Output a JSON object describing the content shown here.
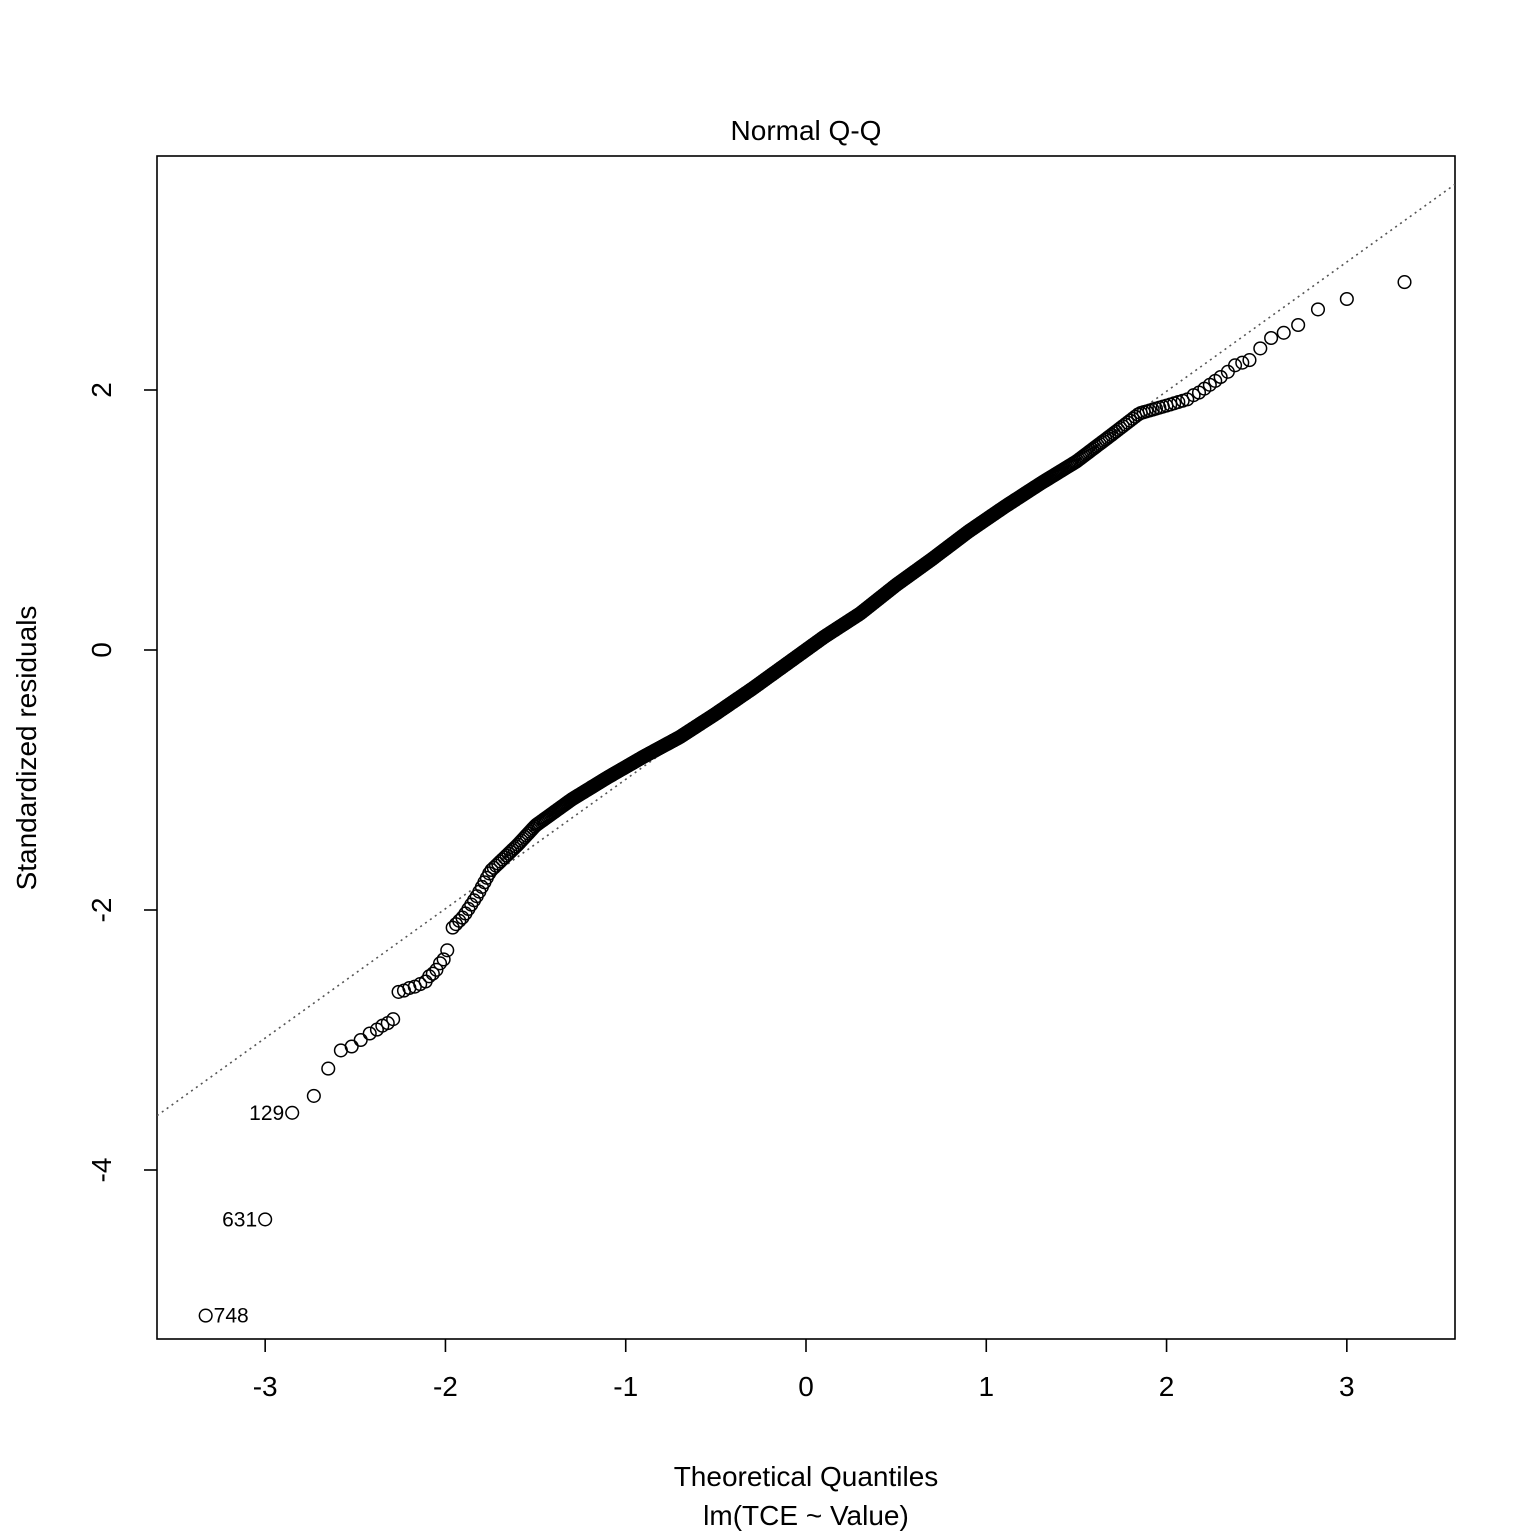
{
  "chart_data": {
    "type": "scatter",
    "title": "Normal Q-Q",
    "xlabel": "Theoretical Quantiles",
    "xlabel_sub": "lm(TCE ~ Value)",
    "ylabel": "Standardized residuals",
    "xlim": [
      -3.6,
      3.6
    ],
    "ylim": [
      -5.3,
      3.8
    ],
    "x_ticks": [
      -3,
      -2,
      -1,
      0,
      1,
      2,
      3
    ],
    "y_ticks": [
      -4,
      -2,
      0,
      2
    ],
    "grid": false,
    "reference_line": {
      "intercept": 0.0,
      "slope": 0.995,
      "style": "dotted"
    },
    "n_points": 900,
    "labeled_points": [
      {
        "label": "748",
        "x": -3.33,
        "y": -5.12
      },
      {
        "label": "631",
        "x": -3.0,
        "y": -4.38
      },
      {
        "label": "129",
        "x": -2.85,
        "y": -3.56
      }
    ],
    "tail_points": [
      {
        "x": -2.73,
        "y": -3.43
      },
      {
        "x": -2.65,
        "y": -3.22
      },
      {
        "x": -2.58,
        "y": -3.08
      },
      {
        "x": -2.52,
        "y": -3.05
      },
      {
        "x": -2.47,
        "y": -3.0
      },
      {
        "x": -2.42,
        "y": -2.95
      },
      {
        "x": -2.38,
        "y": -2.92
      },
      {
        "x": -2.35,
        "y": -2.89
      },
      {
        "x": -2.32,
        "y": -2.87
      },
      {
        "x": -2.29,
        "y": -2.84
      },
      {
        "x": -2.26,
        "y": -2.63
      },
      {
        "x": -2.23,
        "y": -2.62
      },
      {
        "x": -2.2,
        "y": -2.6
      },
      {
        "x": -2.17,
        "y": -2.59
      },
      {
        "x": -2.14,
        "y": -2.57
      },
      {
        "x": -2.11,
        "y": -2.55
      },
      {
        "x": -2.09,
        "y": -2.51
      },
      {
        "x": -2.07,
        "y": -2.49
      },
      {
        "x": -2.05,
        "y": -2.46
      },
      {
        "x": -2.03,
        "y": -2.41
      },
      {
        "x": -2.01,
        "y": -2.38
      },
      {
        "x": -1.99,
        "y": -2.31
      },
      {
        "x": 2.15,
        "y": 1.96
      },
      {
        "x": 2.18,
        "y": 1.98
      },
      {
        "x": 2.21,
        "y": 2.01
      },
      {
        "x": 2.24,
        "y": 2.04
      },
      {
        "x": 2.27,
        "y": 2.07
      },
      {
        "x": 2.3,
        "y": 2.1
      },
      {
        "x": 2.34,
        "y": 2.14
      },
      {
        "x": 2.38,
        "y": 2.19
      },
      {
        "x": 2.42,
        "y": 2.21
      },
      {
        "x": 2.46,
        "y": 2.23
      },
      {
        "x": 2.52,
        "y": 2.32
      },
      {
        "x": 2.58,
        "y": 2.4
      },
      {
        "x": 2.65,
        "y": 2.44
      },
      {
        "x": 2.73,
        "y": 2.5
      },
      {
        "x": 2.84,
        "y": 2.62
      },
      {
        "x": 3.0,
        "y": 2.7
      },
      {
        "x": 3.32,
        "y": 2.83
      }
    ],
    "body_curve": [
      {
        "x": -1.97,
        "y": -2.15
      },
      {
        "x": -1.9,
        "y": -2.05
      },
      {
        "x": -1.82,
        "y": -1.88
      },
      {
        "x": -1.75,
        "y": -1.7
      },
      {
        "x": -1.6,
        "y": -1.5
      },
      {
        "x": -1.5,
        "y": -1.35
      },
      {
        "x": -1.3,
        "y": -1.15
      },
      {
        "x": -1.1,
        "y": -0.98
      },
      {
        "x": -0.9,
        "y": -0.82
      },
      {
        "x": -0.7,
        "y": -0.67
      },
      {
        "x": -0.5,
        "y": -0.49
      },
      {
        "x": -0.3,
        "y": -0.3
      },
      {
        "x": -0.1,
        "y": -0.1
      },
      {
        "x": 0.1,
        "y": 0.1
      },
      {
        "x": 0.3,
        "y": 0.28
      },
      {
        "x": 0.5,
        "y": 0.5
      },
      {
        "x": 0.7,
        "y": 0.7
      },
      {
        "x": 0.9,
        "y": 0.91
      },
      {
        "x": 1.1,
        "y": 1.1
      },
      {
        "x": 1.3,
        "y": 1.28
      },
      {
        "x": 1.5,
        "y": 1.45
      },
      {
        "x": 1.7,
        "y": 1.66
      },
      {
        "x": 1.85,
        "y": 1.82
      },
      {
        "x": 2.0,
        "y": 1.88
      },
      {
        "x": 2.12,
        "y": 1.93
      }
    ]
  }
}
